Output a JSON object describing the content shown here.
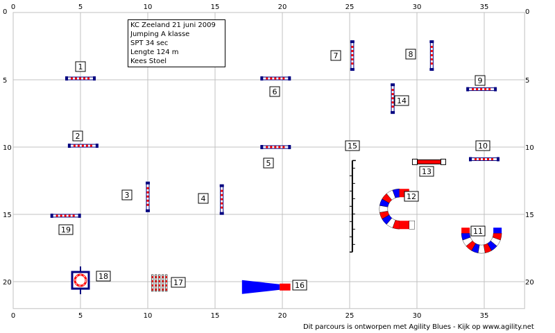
{
  "course": {
    "x_max": 38,
    "y_max": 22,
    "x_ticks": [
      0,
      5,
      10,
      15,
      20,
      25,
      30,
      35
    ],
    "y_ticks": [
      0,
      5,
      10,
      15,
      20
    ],
    "grid_step": 5,
    "colors": {
      "grid": "#c0c0c0",
      "bar_red": "#ff0000",
      "pole": "#000080",
      "tunnel_blue": "#0000ff",
      "tunnel_red": "#ff0000",
      "white": "#ffffff"
    }
  },
  "info": {
    "line1": "KC Zeeland 21 juni 2009",
    "line2": "Jumping A klasse",
    "line3": "SPT 34 sec",
    "line4": "Lengte 124 m",
    "line5": "Kees Stoel"
  },
  "obstacles": [
    {
      "number": "1",
      "type": "jump",
      "x": 5,
      "y": 4.9,
      "orientation": "horizontal"
    },
    {
      "number": "2",
      "type": "jump",
      "x": 5.2,
      "y": 9.9,
      "orientation": "horizontal"
    },
    {
      "number": "3",
      "type": "jump",
      "x": 10,
      "y": 13.7,
      "orientation": "vertical"
    },
    {
      "number": "4",
      "type": "jump",
      "x": 15.5,
      "y": 13.9,
      "orientation": "vertical"
    },
    {
      "number": "5",
      "type": "jump",
      "x": 19.5,
      "y": 10,
      "orientation": "horizontal"
    },
    {
      "number": "6",
      "type": "jump",
      "x": 19.5,
      "y": 4.9,
      "orientation": "horizontal"
    },
    {
      "number": "7",
      "type": "jump",
      "x": 25.2,
      "y": 3.2,
      "orientation": "vertical"
    },
    {
      "number": "8",
      "type": "jump",
      "x": 31.1,
      "y": 3.2,
      "orientation": "vertical"
    },
    {
      "number": "9",
      "type": "jump",
      "x": 34.8,
      "y": 5.7,
      "orientation": "horizontal"
    },
    {
      "number": "10",
      "type": "jump",
      "x": 35,
      "y": 10.9,
      "orientation": "horizontal"
    },
    {
      "number": "11",
      "type": "curved tunnel",
      "x": 34.8,
      "y": 16.4,
      "orientation": "u-down"
    },
    {
      "number": "12",
      "type": "curved tunnel",
      "x": 28.7,
      "y": 14.6,
      "orientation": "u-left"
    },
    {
      "number": "13",
      "type": "long jump bar",
      "x": 30.9,
      "y": 11.1,
      "orientation": "horizontal"
    },
    {
      "number": "14",
      "type": "jump",
      "x": 28.2,
      "y": 6.4,
      "orientation": "vertical"
    },
    {
      "number": "15",
      "type": "weave poles",
      "x": 25.2,
      "y": 14.4,
      "orientation": "vertical"
    },
    {
      "number": "16",
      "type": "chute",
      "x": 19.1,
      "y": 20.4,
      "orientation": "horizontal"
    },
    {
      "number": "17",
      "type": "long jump",
      "x": 10.9,
      "y": 20.1,
      "orientation": "horizontal"
    },
    {
      "number": "18",
      "type": "tire",
      "x": 5,
      "y": 19.9,
      "orientation": "horizontal"
    },
    {
      "number": "19",
      "type": "jump",
      "x": 3.9,
      "y": 15.1,
      "orientation": "horizontal"
    }
  ],
  "footer": {
    "text": "Dit parcours is ontworpen met Agility Blues - Kijk op www.agility.net"
  }
}
